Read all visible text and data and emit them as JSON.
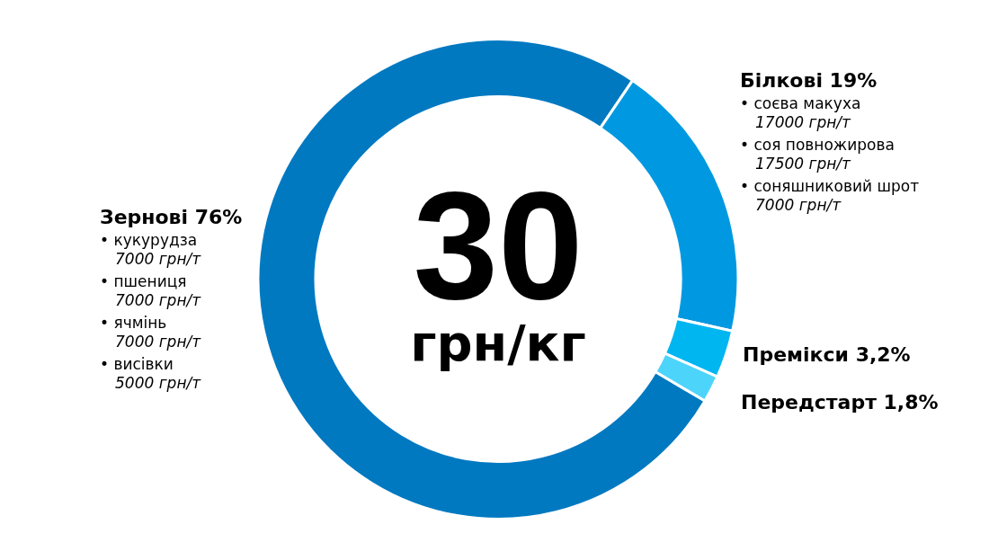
{
  "chart_data": {
    "type": "donut",
    "categories": [
      "Зернові",
      "Білкові",
      "Премікси",
      "Передстарт"
    ],
    "values": [
      76,
      19,
      3.2,
      1.8
    ],
    "colors": [
      "#0079c1",
      "#0099e1",
      "#00b6f1",
      "#4dd4fa"
    ],
    "value_labels": [
      "76%",
      "19%",
      "3,2%",
      "1,8%"
    ],
    "annotations": [
      "30",
      "грн/кг",
      {
        "text": "• кукурудза",
        "x": "Зернові"
      },
      {
        "text": "7000 грн/т",
        "x": "Зернові"
      },
      {
        "text": "• пшениця",
        "x": "Зернові"
      },
      {
        "text": "7000 грн/т",
        "x": "Зернові"
      },
      {
        "text": "• ячмінь",
        "x": "Зернові"
      },
      {
        "text": "7000 грн/т",
        "x": "Зернові"
      },
      {
        "text": "• висівки",
        "x": "Зернові"
      },
      {
        "text": "5000 грн/т",
        "x": "Зернові"
      },
      {
        "text": "• соєва макуха",
        "x": "Білкові"
      },
      {
        "text": "17000 грн/т",
        "x": "Білкові"
      },
      {
        "text": "• соя повножирова",
        "x": "Білкові"
      },
      {
        "text": "17500 грн/т",
        "x": "Білкові"
      },
      {
        "text": "• соняшниковий шрот",
        "x": "Білкові"
      },
      {
        "text": "7000 грн/т",
        "x": "Білкові"
      }
    ]
  }
}
